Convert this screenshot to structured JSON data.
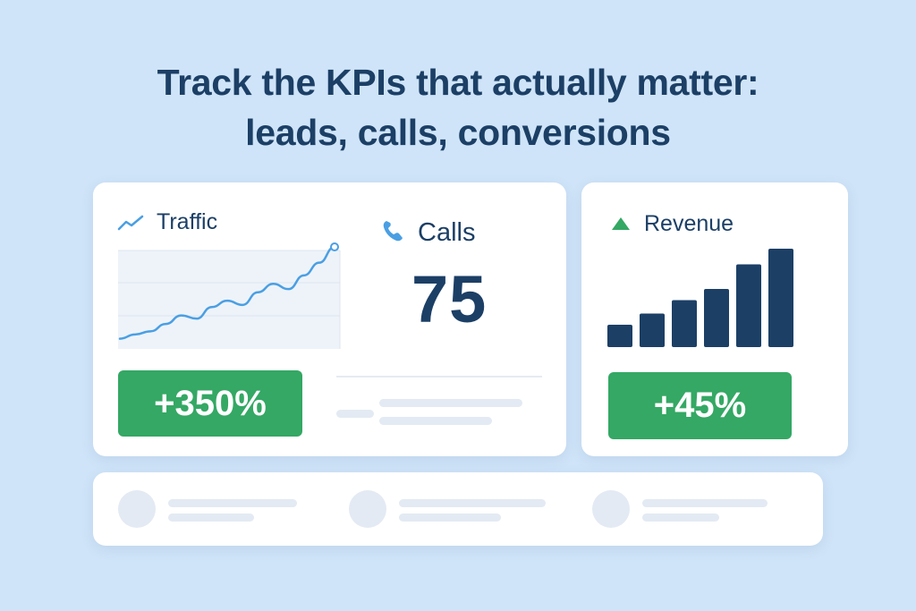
{
  "headline": {
    "line1": "Track the KPIs that actually matter:",
    "line2": "leads, calls, conversions"
  },
  "traffic": {
    "label": "Traffic",
    "icon": "trend-line-icon",
    "change": "+350%",
    "series": [
      8,
      12,
      15,
      22,
      30,
      27,
      38,
      44,
      40,
      52,
      60,
      55,
      68,
      80,
      95
    ]
  },
  "calls": {
    "label": "Calls",
    "icon": "phone-icon",
    "value": "75"
  },
  "revenue": {
    "label": "Revenue",
    "icon": "triangle-up-icon",
    "change": "+45%",
    "bars": [
      2,
      3,
      4.2,
      5.2,
      7.4,
      8.8
    ]
  },
  "colors": {
    "navy": "#1c3f66",
    "green": "#34a864",
    "blue_line": "#4a9fe3",
    "background": "#cfe4f8"
  }
}
